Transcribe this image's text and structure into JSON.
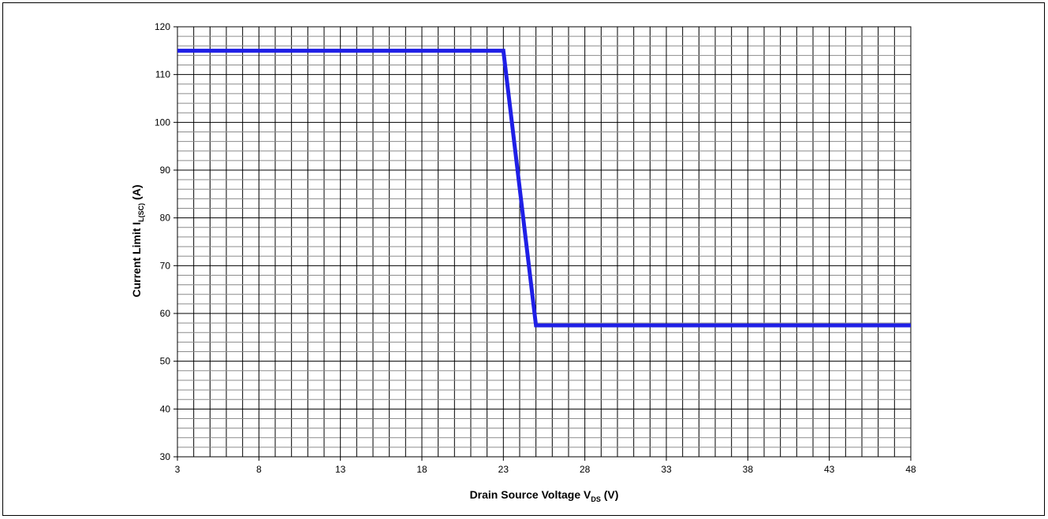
{
  "chart_data": {
    "type": "line",
    "xlabel": {
      "main": "Drain Source Voltage V",
      "sub": "DS",
      "unit": " (V)"
    },
    "ylabel": {
      "main": "Current Limit I",
      "sub": "L(SC)",
      "unit": " (A)"
    },
    "xlim": [
      3,
      48
    ],
    "ylim": [
      30,
      120
    ],
    "x_ticks": [
      3,
      8,
      13,
      18,
      23,
      28,
      33,
      38,
      43,
      48
    ],
    "y_ticks": [
      30,
      40,
      50,
      60,
      70,
      80,
      90,
      100,
      110,
      120
    ],
    "x_minor_step": 1,
    "y_minor_step": 2,
    "grid": true,
    "series": [
      {
        "color": "#1f1fe6",
        "x": [
          3,
          23,
          25,
          48
        ],
        "y": [
          115,
          115,
          57.5,
          57.5
        ]
      }
    ]
  }
}
